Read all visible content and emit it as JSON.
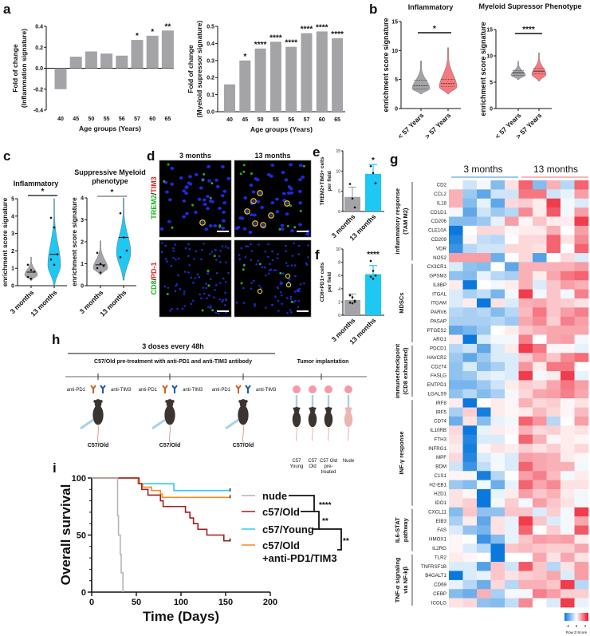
{
  "panels": {
    "a": "a",
    "b": "b",
    "c": "c",
    "d": "d",
    "e": "e",
    "f": "f",
    "g": "g",
    "h": "h",
    "i": "i"
  },
  "panel_d": {
    "col_titles": [
      "3 months",
      "13 months"
    ],
    "row1_label": {
      "green": "TREM2",
      "sep": "/",
      "red": "TIM3"
    },
    "row2_label": {
      "green": "CD8",
      "sep": "/",
      "red": "PD-1"
    }
  },
  "panel_h": {
    "doses": "3 doses every 48h",
    "pretreatment": "C57/Old pre-treatment with anti-PD1 and anti-TIM3 antibody",
    "tumor": "Tumor implantation",
    "ab_left": "anti-PD1",
    "ab_right": "anti-TIM3",
    "mouse_label": "C57/Old",
    "groups": [
      [
        "C57",
        "Young"
      ],
      [
        "C57",
        "Old"
      ],
      [
        "C57 Old",
        "pre-",
        "treated"
      ],
      [
        "Nude"
      ]
    ]
  },
  "colors": {
    "gray": "#a3a3a8",
    "teal": "#1ec8f2",
    "pink": "#f47a80",
    "blue_hm": "#0a78dc",
    "red_hm": "#f03c4c",
    "nude": "#b4b4b4",
    "old": "#a51c1c",
    "young": "#28ccf5",
    "treated": "#f58c1e"
  },
  "chart_data": [
    {
      "type": "bar",
      "title": "",
      "xlabel": "Age groups (Years)",
      "ylabel": [
        "Fold of change",
        "(Inflammation signature)"
      ],
      "categories": [
        "40",
        "45",
        "50",
        "55",
        "56",
        "57",
        "60",
        "65"
      ],
      "values": [
        -0.2,
        0.11,
        0.16,
        0.14,
        0.12,
        0.27,
        0.31,
        0.36
      ],
      "significance": [
        "",
        "",
        "",
        "",
        "",
        "*",
        "*",
        "**"
      ],
      "ylim": [
        -0.4,
        0.4
      ],
      "ytick_labels": [
        "-0.4",
        "-0.2",
        "0.0",
        "0.2",
        "0.4"
      ]
    },
    {
      "type": "bar",
      "title": "",
      "xlabel": "Age groups (Years)",
      "ylabel": [
        "Fold of change",
        "(Myeloid supressor signature)"
      ],
      "categories": [
        "40",
        "45",
        "50",
        "55",
        "56",
        "57",
        "60",
        "65"
      ],
      "values": [
        0.16,
        0.3,
        0.37,
        0.41,
        0.38,
        0.46,
        0.47,
        0.43
      ],
      "significance": [
        "",
        "*",
        "****",
        "****",
        "****",
        "****",
        "****",
        "****"
      ],
      "ylim": [
        0,
        0.5
      ],
      "ytick_labels": [
        "0.0",
        "0.1",
        "0.2",
        "0.3",
        "0.4",
        "0.5"
      ]
    },
    {
      "type": "violin",
      "title": "Inflammatory",
      "ylabel": "enrichment score signature",
      "categories": [
        "< 57 Years",
        "> 57 Years"
      ],
      "ylim": [
        0,
        15
      ],
      "ytick_labels": [
        "0",
        "5",
        "10",
        "15"
      ],
      "significance": "*",
      "groups": [
        {
          "min": 2.5,
          "q1": 3.4,
          "median": 3.9,
          "q3": 4.9,
          "max": 8.2
        },
        {
          "min": 2.5,
          "q1": 3.8,
          "median": 4.3,
          "q3": 5.0,
          "max": 10.5
        }
      ]
    },
    {
      "type": "violin",
      "title": "Myeloid  Supressor Phenotype",
      "ylabel": "enrichment score signature",
      "categories": [
        "< 57 Years",
        "> 57 Years"
      ],
      "ylim": [
        0,
        15
      ],
      "ytick_labels": [
        "0",
        "5",
        "10",
        "15"
      ],
      "significance": "****",
      "groups": [
        {
          "min": 5.5,
          "q1": 6.3,
          "median": 6.8,
          "q3": 7.2,
          "max": 9.0
        },
        {
          "min": 5.2,
          "q1": 6.6,
          "median": 7.1,
          "q3": 7.6,
          "max": 10.6
        }
      ]
    },
    {
      "type": "violin",
      "title": [
        "Inflammatory"
      ],
      "ylabel": "enrichment score signature",
      "categories": [
        "3 months",
        "13 months"
      ],
      "ylim": [
        0,
        5
      ],
      "ytick_labels": [
        "0",
        "1",
        "2",
        "3",
        "4",
        "5"
      ],
      "significance": "*",
      "groups": [
        {
          "min": 0.3,
          "median": 0.78,
          "max": 1.65,
          "points": [
            1.2,
            0.9,
            0.8,
            0.5,
            0.4
          ]
        },
        {
          "min": 0.0,
          "median": 1.8,
          "max": 5.0,
          "points": [
            3.9,
            3.35,
            1.8,
            1.5,
            1.2
          ]
        }
      ]
    },
    {
      "type": "violin",
      "title": [
        "Suppressive Myeloid",
        "phenotype"
      ],
      "ylabel": "enrichment score signature",
      "categories": [
        "3 months",
        "13 months"
      ],
      "ylim": [
        0,
        4
      ],
      "ytick_labels": [
        "0",
        "1",
        "2",
        "3",
        "4"
      ],
      "significance": "*",
      "groups": [
        {
          "min": 0.5,
          "median": 0.95,
          "max": 2.05,
          "points": [
            1.5,
            1.0,
            0.9,
            0.8,
            0.6
          ]
        },
        {
          "min": 0.25,
          "median": 2.2,
          "max": 4.0,
          "points": [
            3.3,
            2.2,
            1.6,
            1.3
          ]
        }
      ]
    },
    {
      "type": "bar",
      "ylabel": [
        "TREM2+TIM3+ cells",
        "per field"
      ],
      "categories": [
        "3 months",
        "13 months"
      ],
      "values": [
        3.6,
        9.3
      ],
      "error": [
        2.4,
        2.3
      ],
      "points": [
        [
          6.8,
          3.2,
          1.0
        ],
        [
          11.2,
          9.5,
          7.0
        ]
      ],
      "significance": [
        "",
        "*"
      ],
      "ylim": [
        0,
        15
      ],
      "ytick_labels": [
        "0",
        "5",
        "10",
        "15"
      ]
    },
    {
      "type": "bar",
      "ylabel": [
        "CD8+PD1+ cells",
        "per field"
      ],
      "categories": [
        "3 months",
        "13 months"
      ],
      "values": [
        2.3,
        6.2
      ],
      "error": [
        0.9,
        1.3
      ],
      "points": [
        [
          3.0,
          2.7,
          2.2,
          1.9,
          1.8,
          2.0
        ],
        [
          8.2,
          6.7,
          6.0,
          5.8,
          5.5
        ]
      ],
      "significance": [
        "",
        "****"
      ],
      "ylim": [
        0,
        10
      ],
      "ytick_labels": [
        "0",
        "2",
        "4",
        "6",
        "8",
        "10"
      ]
    },
    {
      "type": "heatmap",
      "column_groups": [
        "3 months",
        "13 months"
      ],
      "scale_label": "Row Z-Score",
      "scale_ticks": [
        "-2",
        "0",
        "2"
      ],
      "genes": [
        "CD2",
        "CCL2",
        "IL18",
        "CD1D1",
        "CD206",
        "CLE10A",
        "CD209",
        "VDR",
        "NOS2",
        "CX3CR1",
        "GPSM3",
        "IL8BP",
        "ITGAL",
        "ITGAM",
        "PARV6",
        "PASAP",
        "PTGES2",
        "ARG1",
        "PDCD1",
        "HAVCR2",
        "CD274",
        "FASLG",
        "ENTPD1",
        "LGALS9",
        "IRF8",
        "IRF5",
        "CD74",
        "IL10RB",
        "FTH3",
        "INFRG1",
        "MPF",
        "BDM",
        "C1S1",
        "H2-EB1",
        "H2D1",
        "IDO1",
        "CXCL11",
        "EIB3",
        "FAS",
        "HMOX1",
        "IL2RG",
        "TLR2",
        "TNFRSF1B",
        "B4GALT1",
        "CD69",
        "CEBP",
        "ICOLG"
      ],
      "row_groups": [
        {
          "label": [
            "inflammatory response",
            "(TAM M2)"
          ],
          "start": 0,
          "end": 8
        },
        {
          "label": [
            "MDSCs"
          ],
          "start": 9,
          "end": 17
        },
        {
          "label": [
            "immunecheckpoint",
            "(CD8 exhausted)"
          ],
          "start": 18,
          "end": 23
        },
        {
          "label": [
            "INF-γ response"
          ],
          "start": 24,
          "end": 35
        },
        {
          "label": [
            "IL6-STAT",
            "pathway"
          ],
          "start": 36,
          "end": 40
        },
        {
          "label": [
            "TNF-α signaling",
            "via NF-kβ"
          ],
          "start": 41,
          "end": 46
        }
      ],
      "z": [
        [
          0,
          -0.4,
          -0.1,
          -1,
          0.3,
          1.6,
          -1,
          0.8,
          -0.6,
          1.6
        ],
        [
          0.8,
          -0.8,
          -1.3,
          -0.4,
          -0.4,
          1.4,
          1.4,
          -0.4,
          -0.2,
          1
        ],
        [
          0.8,
          -1,
          -0.2,
          -1.3,
          0.4,
          0.5,
          0.2,
          2,
          -0.1,
          -0.3
        ],
        [
          -0.1,
          -1.3,
          -0.4,
          -0.8,
          -0.6,
          1.2,
          0.2,
          1.7,
          -0.1,
          1
        ],
        [
          -1,
          -1,
          -0.8,
          -0.2,
          1,
          0.1,
          0.6,
          0.2,
          0.2,
          2
        ],
        [
          -2,
          0,
          0.4,
          0.4,
          0.1,
          0.2,
          0.2,
          0.8,
          0,
          1
        ],
        [
          -1.8,
          0.1,
          -0.5,
          -0.6,
          0,
          0.4,
          0.4,
          1.6,
          0.3,
          1.2
        ],
        [
          -1.6,
          -0.6,
          -0.4,
          -0.4,
          0.4,
          0.4,
          0.3,
          1.6,
          0,
          1.6
        ],
        [
          1,
          1,
          1,
          -1.2,
          0,
          0.4,
          -1.4,
          0,
          0.4,
          -0.3
        ],
        [
          -0.3,
          -0.9,
          -1,
          0,
          -1.3,
          0.8,
          0.8,
          0.8,
          0.8,
          1
        ],
        [
          -0.9,
          -1,
          -0.2,
          -0.6,
          -0.7,
          0.8,
          0.2,
          0.9,
          1.4,
          1.6
        ],
        [
          0.2,
          -2,
          0,
          -0.1,
          0.2,
          0.8,
          -0.3,
          0.6,
          1,
          0.8
        ],
        [
          -0.3,
          -0.7,
          -0.5,
          -1.1,
          -0.1,
          2,
          -0.1,
          0.6,
          -0.1,
          1.3
        ],
        [
          -0.3,
          0.2,
          -2,
          0.3,
          -0.3,
          0.8,
          0.9,
          0.6,
          0.5,
          0.3
        ],
        [
          -0.6,
          -0.7,
          -0.6,
          -1,
          -0.6,
          0.7,
          1.4,
          0.6,
          1,
          1.3
        ],
        [
          -0.7,
          -0.7,
          -0.7,
          -0.6,
          -0.8,
          0.9,
          1.2,
          0.5,
          1.3,
          1
        ],
        [
          -1.3,
          -1.1,
          -0.8,
          0,
          0.2,
          0.6,
          0.8,
          0.9,
          0.9,
          0.9
        ],
        [
          0.2,
          -2,
          -0.3,
          -0.1,
          -0.1,
          1.3,
          0,
          0.9,
          1,
          -0.1
        ],
        [
          -0.6,
          -0.4,
          -1.3,
          -0.3,
          0.2,
          2,
          1.4,
          0.1,
          0.1,
          -0.2
        ],
        [
          -0.8,
          -1.3,
          -0.8,
          -0.3,
          -0.3,
          0.5,
          1,
          0.6,
          1.2,
          1.5
        ],
        [
          -0.9,
          -0.3,
          -1,
          -0.7,
          -0.3,
          1.1,
          0.2,
          1.4,
          1.4,
          0
        ],
        [
          -0.9,
          -0.8,
          -0.3,
          -0.2,
          -0.3,
          2,
          -0.1,
          0.2,
          2,
          -0.2
        ],
        [
          -1.1,
          -1.1,
          -0.8,
          -0.4,
          0.2,
          0.5,
          0.4,
          0.9,
          1.4,
          1
        ],
        [
          -0.9,
          -0.6,
          -1,
          -0.7,
          -0.1,
          0.4,
          0.9,
          1,
          1.3,
          0.9
        ],
        [
          0.2,
          -2,
          0,
          0.2,
          0.1,
          0.8,
          0.4,
          0.5,
          0.1,
          0.3
        ],
        [
          -0.7,
          0.5,
          -1.9,
          0.2,
          0.1,
          0.2,
          0.7,
          0.4,
          0.1,
          0.7
        ],
        [
          -1.2,
          0.3,
          -1,
          -0.2,
          -0.1,
          1.6,
          1.1,
          -0.6,
          0,
          1
        ],
        [
          0.4,
          -2,
          -0.2,
          0.2,
          0.1,
          0.8,
          0.4,
          0.5,
          0.2,
          0.3
        ],
        [
          0.3,
          -1.8,
          -0.3,
          -0.3,
          0,
          1.6,
          0.8,
          0.1,
          0.2,
          0.1
        ],
        [
          0.2,
          -1.9,
          0.1,
          0.3,
          0.2,
          0.5,
          0.3,
          0.5,
          0.2,
          0.4
        ],
        [
          0.4,
          -1.8,
          -0.3,
          -0.1,
          -0.3,
          1,
          0.9,
          0.8,
          0.2,
          0.1
        ],
        [
          -0.4,
          -1.6,
          -0.5,
          -0.1,
          -0.3,
          1.6,
          0.9,
          0.8,
          0.8,
          -0.1
        ],
        [
          0.1,
          0.1,
          -1.9,
          -0.6,
          0,
          1,
          1.3,
          0.7,
          -0.1,
          0.2
        ],
        [
          -0.8,
          -1,
          -0.1,
          -1.2,
          -0.2,
          1.6,
          0.9,
          1.2,
          0.3,
          0.3
        ],
        [
          0.3,
          0.1,
          -2,
          -0.2,
          0.2,
          1,
          0.6,
          0.8,
          0.2,
          -0.1
        ],
        [
          0.3,
          0.5,
          -2,
          -0.1,
          0.5,
          -0.1,
          1,
          0.6,
          0.3,
          -0.1
        ],
        [
          -1,
          0.6,
          -0.9,
          -0.9,
          0.6,
          0.6,
          -0.3,
          0.5,
          -0.1,
          2
        ],
        [
          -0.7,
          0.2,
          -1.3,
          0.3,
          -0.2,
          2,
          0.6,
          -0.3,
          -0.1,
          0.9
        ],
        [
          -0.3,
          -0.9,
          -1.1,
          0.3,
          -0.2,
          1.6,
          0,
          0.5,
          -0.1,
          1.7
        ],
        [
          0.1,
          0,
          -1.6,
          -1,
          -0.2,
          0.6,
          1,
          0.9,
          1,
          0.2
        ],
        [
          0.1,
          -0.3,
          -0.6,
          -2,
          0.6,
          0.7,
          0.6,
          0.5,
          0.5,
          0.9
        ],
        [
          0.2,
          0.1,
          0,
          -2,
          0,
          0,
          0.9,
          0.3,
          0.9,
          0.3
        ],
        [
          -0.3,
          -0.3,
          -1.4,
          0.6,
          -0.4,
          1.7,
          0.6,
          -0.6,
          0.3,
          1
        ],
        [
          -2,
          -0.3,
          -0.2,
          0.6,
          0.3,
          0.5,
          0.6,
          0.9,
          -0.3,
          1
        ],
        [
          -0.2,
          -0.6,
          -1.2,
          0.4,
          -0.6,
          0.8,
          0.8,
          0.6,
          2,
          -0.6
        ],
        [
          -1,
          -1.2,
          0.8,
          -0.7,
          -0.1,
          -0.1,
          1.3,
          1,
          0.5,
          0.5
        ],
        [
          0.3,
          0.4,
          -0.9,
          -1,
          -0.5,
          1.2,
          0,
          -0.3,
          2,
          -0.2
        ]
      ]
    },
    {
      "type": "line",
      "subtype": "kaplan-meier",
      "xlabel": "Time (Days)",
      "ylabel": "Overall survival",
      "xlim": [
        0,
        200
      ],
      "ylim": [
        0,
        100
      ],
      "xtick_labels": [
        "0",
        "50",
        "100",
        "150",
        "200"
      ],
      "ytick_labels": [
        "0",
        "50",
        "100"
      ],
      "series": [
        {
          "name": "nude",
          "color_key": "nude",
          "steps": [
            [
              0,
              100
            ],
            [
              29,
              67
            ],
            [
              30,
              50
            ],
            [
              32,
              33
            ],
            [
              33,
              17
            ],
            [
              35,
              0
            ]
          ]
        },
        {
          "name": "c57/Old",
          "color_key": "old",
          "steps": [
            [
              0,
              100
            ],
            [
              53,
              95
            ],
            [
              56,
              90
            ],
            [
              63,
              85
            ],
            [
              77,
              80
            ],
            [
              80,
              75
            ],
            [
              105,
              70
            ],
            [
              110,
              65
            ],
            [
              114,
              60
            ],
            [
              119,
              55
            ],
            [
              129,
              50
            ],
            [
              148,
              45
            ],
            [
              155,
              45
            ]
          ]
        },
        {
          "name": "c57/Young",
          "color_key": "young",
          "steps": [
            [
              0,
              100
            ],
            [
              52,
              95
            ],
            [
              92,
              89
            ],
            [
              155,
              89
            ]
          ]
        },
        {
          "name": "c57/Old",
          "name_line2": "+anti-PD1/TIM3",
          "color_key": "treated",
          "steps": [
            [
              0,
              100
            ],
            [
              52,
              95
            ],
            [
              57,
              92
            ],
            [
              67,
              89
            ],
            [
              77,
              86
            ],
            [
              79,
              83
            ],
            [
              155,
              83
            ]
          ]
        }
      ],
      "comparisons": [
        "****",
        "**",
        "**"
      ]
    }
  ]
}
